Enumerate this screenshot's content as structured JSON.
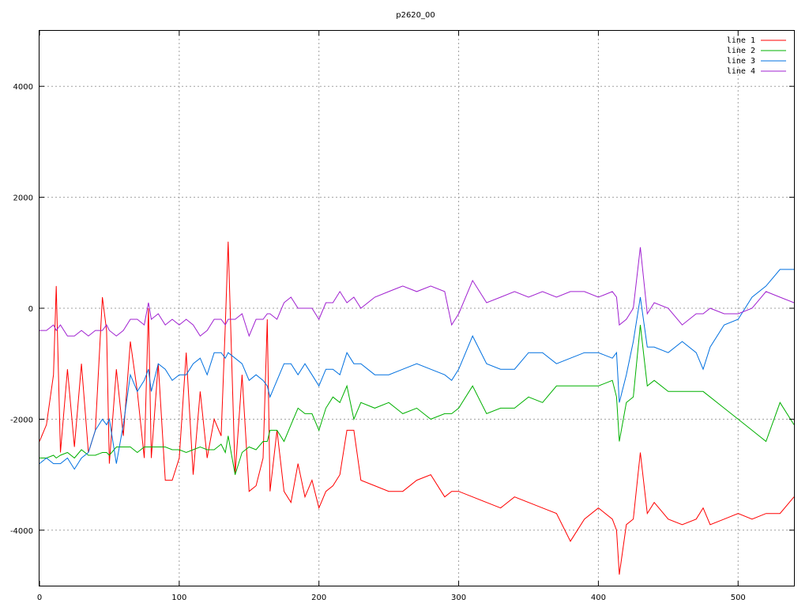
{
  "chart_data": {
    "type": "line",
    "title": "p2620_00",
    "xlabel": "",
    "ylabel": "",
    "xlim": [
      0,
      540
    ],
    "ylim": [
      -5000,
      5000
    ],
    "xticks": [
      "0",
      "100",
      "200",
      "300",
      "400",
      "500"
    ],
    "xtick_values": [
      0,
      100,
      200,
      300,
      400,
      500
    ],
    "yticks": [
      "-4000",
      "-2000",
      "0",
      "2000",
      "4000"
    ],
    "ytick_values": [
      -4000,
      -2000,
      0,
      2000,
      4000
    ],
    "grid": true,
    "legend_position": "top-right",
    "x": [
      0,
      5,
      10,
      12,
      15,
      20,
      25,
      30,
      35,
      40,
      45,
      48,
      50,
      55,
      60,
      65,
      70,
      75,
      78,
      80,
      85,
      90,
      95,
      100,
      105,
      110,
      115,
      120,
      125,
      130,
      133,
      135,
      140,
      145,
      150,
      155,
      160,
      163,
      165,
      170,
      175,
      180,
      185,
      190,
      195,
      200,
      205,
      210,
      215,
      220,
      225,
      230,
      240,
      250,
      260,
      270,
      280,
      290,
      295,
      300,
      310,
      320,
      330,
      340,
      350,
      360,
      370,
      380,
      390,
      400,
      410,
      413,
      415,
      420,
      425,
      430,
      435,
      440,
      450,
      460,
      470,
      475,
      480,
      490,
      500,
      510,
      520,
      530,
      540
    ],
    "series": [
      {
        "name": "line 1",
        "color": "#ff0000",
        "values": [
          -2400,
          -2100,
          -1200,
          400,
          -2600,
          -1100,
          -2500,
          -1000,
          -2600,
          -2200,
          200,
          -400,
          -2800,
          -1100,
          -2300,
          -600,
          -1500,
          -2700,
          0,
          -2700,
          -1000,
          -3100,
          -3100,
          -2700,
          -800,
          -3000,
          -1500,
          -2700,
          -2000,
          -2300,
          -300,
          1200,
          -3000,
          -1200,
          -3300,
          -3200,
          -2700,
          -200,
          -3300,
          -2200,
          -3300,
          -3500,
          -2800,
          -3400,
          -3100,
          -3600,
          -3300,
          -3200,
          -3000,
          -2200,
          -2200,
          -3100,
          -3200,
          -3300,
          -3300,
          -3100,
          -3000,
          -3400,
          -3300,
          -3300,
          -3400,
          -3500,
          -3600,
          -3400,
          -3500,
          -3600,
          -3700,
          -4200,
          -3800,
          -3600,
          -3800,
          -4000,
          -4800,
          -3900,
          -3800,
          -2600,
          -3700,
          -3500,
          -3800,
          -3900,
          -3800,
          -3600,
          -3900,
          -3800,
          -3700,
          -3800,
          -3700,
          -3700,
          -3400
        ]
      },
      {
        "name": "line 2",
        "color": "#00b000",
        "values": [
          -2700,
          -2700,
          -2650,
          -2700,
          -2650,
          -2600,
          -2700,
          -2550,
          -2650,
          -2650,
          -2600,
          -2600,
          -2650,
          -2500,
          -2500,
          -2500,
          -2600,
          -2500,
          -2500,
          -2500,
          -2500,
          -2500,
          -2550,
          -2550,
          -2600,
          -2550,
          -2500,
          -2550,
          -2550,
          -2450,
          -2600,
          -2300,
          -3000,
          -2600,
          -2500,
          -2550,
          -2400,
          -2400,
          -2200,
          -2200,
          -2400,
          -2100,
          -1800,
          -1900,
          -1900,
          -2200,
          -1800,
          -1600,
          -1700,
          -1400,
          -2000,
          -1700,
          -1800,
          -1700,
          -1900,
          -1800,
          -2000,
          -1900,
          -1900,
          -1800,
          -1400,
          -1900,
          -1800,
          -1800,
          -1600,
          -1700,
          -1400,
          -1400,
          -1400,
          -1400,
          -1300,
          -1600,
          -2400,
          -1700,
          -1600,
          -300,
          -1400,
          -1300,
          -1500,
          -1500,
          -1500,
          -1500,
          -1600,
          -1800,
          -2000,
          -2200,
          -2400,
          -1700,
          -2100
        ]
      },
      {
        "name": "line 3",
        "color": "#0070e0",
        "values": [
          -2800,
          -2700,
          -2800,
          -2800,
          -2800,
          -2700,
          -2900,
          -2700,
          -2600,
          -2200,
          -2000,
          -2100,
          -2000,
          -2800,
          -2100,
          -1200,
          -1500,
          -1300,
          -1100,
          -1500,
          -1000,
          -1100,
          -1300,
          -1200,
          -1200,
          -1000,
          -900,
          -1200,
          -800,
          -800,
          -900,
          -800,
          -900,
          -1000,
          -1300,
          -1200,
          -1300,
          -1400,
          -1600,
          -1300,
          -1000,
          -1000,
          -1200,
          -1000,
          -1200,
          -1400,
          -1100,
          -1100,
          -1200,
          -800,
          -1000,
          -1000,
          -1200,
          -1200,
          -1100,
          -1000,
          -1100,
          -1200,
          -1300,
          -1100,
          -500,
          -1000,
          -1100,
          -1100,
          -800,
          -800,
          -1000,
          -900,
          -800,
          -800,
          -900,
          -800,
          -1700,
          -1200,
          -600,
          200,
          -700,
          -700,
          -800,
          -600,
          -800,
          -1100,
          -700,
          -300,
          -200,
          200,
          400,
          700,
          700
        ]
      },
      {
        "name": "line 4",
        "color": "#a020d0",
        "values": [
          -400,
          -400,
          -300,
          -400,
          -300,
          -500,
          -500,
          -400,
          -500,
          -400,
          -400,
          -300,
          -400,
          -500,
          -400,
          -200,
          -200,
          -300,
          100,
          -200,
          -100,
          -300,
          -200,
          -300,
          -200,
          -300,
          -500,
          -400,
          -200,
          -200,
          -300,
          -200,
          -200,
          -100,
          -500,
          -200,
          -200,
          -100,
          -100,
          -200,
          100,
          200,
          0,
          0,
          0,
          -200,
          100,
          100,
          300,
          100,
          200,
          0,
          200,
          300,
          400,
          300,
          400,
          300,
          -300,
          -100,
          500,
          100,
          200,
          300,
          200,
          300,
          200,
          300,
          300,
          200,
          300,
          200,
          -300,
          -200,
          0,
          1100,
          -100,
          100,
          0,
          -300,
          -100,
          -100,
          0,
          -100,
          -100,
          0,
          300,
          200,
          100
        ]
      }
    ]
  }
}
